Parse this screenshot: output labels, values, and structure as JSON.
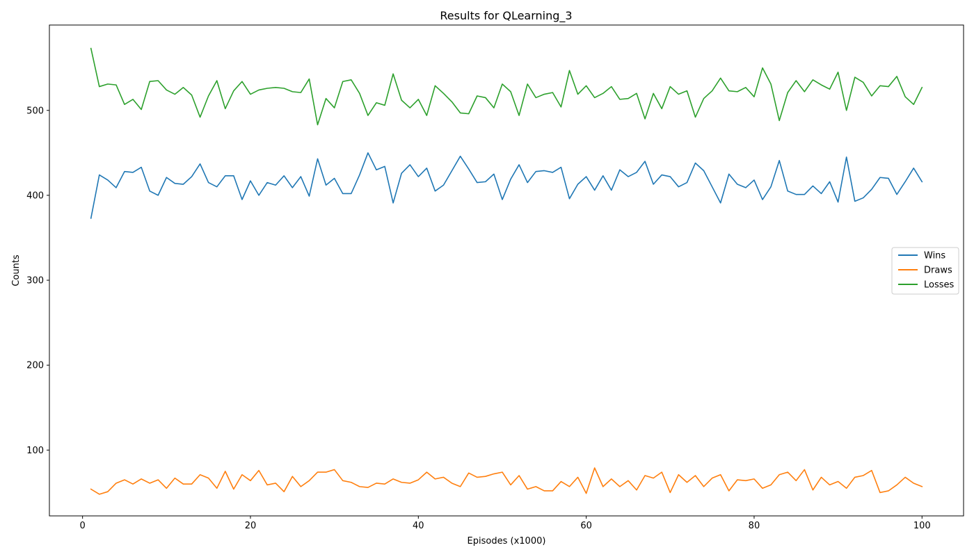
{
  "chart_data": {
    "type": "line",
    "title": "Results for QLearning_3",
    "xlabel": "Episodes (x1000)",
    "ylabel": "Counts",
    "xlim": [
      -3.95,
      104.95
    ],
    "ylim": [
      22.5,
      600.5
    ],
    "xticks": [
      0,
      20,
      40,
      60,
      80,
      100
    ],
    "yticks": [
      100,
      200,
      300,
      400,
      500
    ],
    "grid": false,
    "legend_position": "right",
    "x_start": 1,
    "series": [
      {
        "name": "Wins",
        "color": "#1f77b4",
        "values": [
          373,
          424,
          418,
          409,
          428,
          427,
          433,
          405,
          400,
          421,
          414,
          413,
          422,
          437,
          415,
          410,
          423,
          423,
          395,
          417,
          400,
          415,
          412,
          423,
          409,
          422,
          399,
          443,
          412,
          420,
          402,
          402,
          424,
          450,
          430,
          434,
          391,
          426,
          436,
          422,
          432,
          405,
          412,
          429,
          446,
          431,
          415,
          416,
          425,
          395,
          419,
          436,
          415,
          428,
          429,
          427,
          433,
          396,
          413,
          422,
          406,
          423,
          406,
          430,
          422,
          427,
          440,
          413,
          424,
          422,
          410,
          415,
          438,
          429,
          410,
          391,
          425,
          413,
          409,
          418,
          395,
          410,
          441,
          405,
          401,
          401,
          411,
          402,
          416,
          392,
          445,
          393,
          397,
          407,
          421,
          420,
          401,
          416,
          432,
          416
        ]
      },
      {
        "name": "Draws",
        "color": "#ff7f0e",
        "values": [
          54,
          48,
          51,
          61,
          65,
          60,
          66,
          61,
          65,
          55,
          67,
          60,
          60,
          71,
          67,
          55,
          75,
          54,
          71,
          64,
          76,
          59,
          61,
          51,
          69,
          57,
          64,
          74,
          74,
          77,
          64,
          62,
          57,
          56,
          61,
          60,
          66,
          62,
          61,
          65,
          74,
          66,
          68,
          61,
          57,
          73,
          68,
          69,
          72,
          74,
          59,
          70,
          54,
          57,
          52,
          52,
          63,
          57,
          68,
          49,
          79,
          57,
          66,
          57,
          64,
          53,
          70,
          67,
          74,
          50,
          71,
          62,
          70,
          57,
          67,
          71,
          52,
          65,
          64,
          66,
          55,
          59,
          71,
          74,
          64,
          77,
          53,
          68,
          59,
          63,
          55,
          68,
          70,
          76,
          50,
          52,
          59,
          68,
          61,
          57
        ]
      },
      {
        "name": "Losses",
        "color": "#2ca02c",
        "values": [
          573,
          528,
          531,
          530,
          507,
          513,
          501,
          534,
          535,
          524,
          519,
          527,
          518,
          492,
          517,
          535,
          502,
          523,
          534,
          519,
          524,
          526,
          527,
          526,
          522,
          521,
          537,
          483,
          514,
          503,
          534,
          536,
          520,
          494,
          509,
          506,
          543,
          512,
          503,
          513,
          494,
          529,
          520,
          510,
          497,
          496,
          517,
          515,
          503,
          531,
          522,
          494,
          531,
          515,
          519,
          521,
          504,
          547,
          519,
          529,
          515,
          520,
          528,
          513,
          514,
          520,
          490,
          520,
          502,
          528,
          519,
          523,
          492,
          514,
          523,
          538,
          523,
          522,
          527,
          516,
          550,
          531,
          488,
          521,
          535,
          522,
          536,
          530,
          525,
          545,
          500,
          539,
          533,
          517,
          529,
          528,
          540,
          516,
          507,
          527
        ]
      }
    ]
  }
}
